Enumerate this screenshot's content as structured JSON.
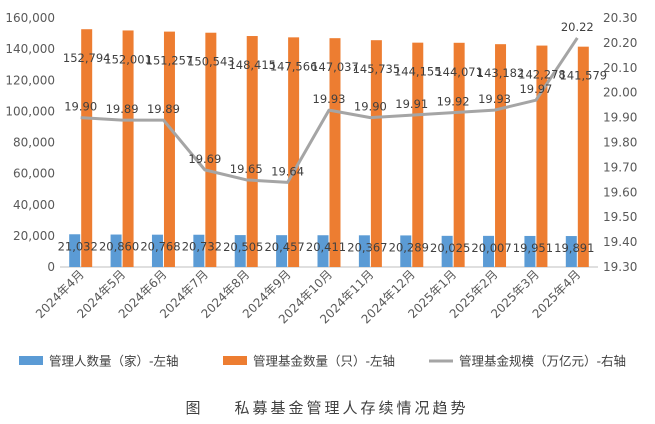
{
  "chart_data": {
    "type": "bar",
    "categories": [
      "2024年4月",
      "2024年5月",
      "2024年6月",
      "2024年7月",
      "2024年8月",
      "2024年9月",
      "2024年10月",
      "2024年11月",
      "2024年12月",
      "2025年1月",
      "2025年2月",
      "2025年3月",
      "2025年4月"
    ],
    "series": [
      {
        "name": "管理人数量（家）-左轴",
        "type": "bar",
        "axis": "left",
        "color": "#5B9BD5",
        "values": [
          21032,
          20860,
          20768,
          20732,
          20505,
          20457,
          20411,
          20367,
          20289,
          20025,
          20007,
          19951,
          19891
        ],
        "labels": [
          "21,032",
          "20,860",
          "20,768",
          "20,732",
          "20,505",
          "20,457",
          "20,411",
          "20,367",
          "20,289",
          "20,025",
          "20,007",
          "19,951",
          "19,891"
        ]
      },
      {
        "name": "管理基金数量（只）-左轴",
        "type": "bar",
        "axis": "left",
        "color": "#ED7D31",
        "values": [
          152794,
          152001,
          151257,
          150543,
          148415,
          147566,
          147037,
          145735,
          144155,
          144071,
          143182,
          142278,
          141579
        ],
        "labels": [
          "152,794",
          "152,001",
          "151,257",
          "150,543",
          "148,415",
          "147,566",
          "147,037",
          "145,735",
          "144,155",
          "144,071",
          "143,182",
          "142,278",
          "141,579"
        ]
      },
      {
        "name": "管理基金规模（万亿元）-右轴",
        "type": "line",
        "axis": "right",
        "color": "#A5A5A5",
        "values": [
          19.9,
          19.89,
          19.89,
          19.69,
          19.65,
          19.64,
          19.93,
          19.9,
          19.91,
          19.92,
          19.93,
          19.97,
          20.22
        ],
        "labels": [
          "19.90",
          "19.89",
          "19.89",
          "19.69",
          "19.65",
          "19.64",
          "19.93",
          "19.90",
          "19.91",
          "19.92",
          "19.93",
          "19.97",
          "20.22"
        ]
      }
    ],
    "left_axis": {
      "range": [
        0,
        160000
      ],
      "ticks": [
        0,
        20000,
        40000,
        60000,
        80000,
        100000,
        120000,
        140000,
        160000
      ],
      "tick_labels": [
        "0",
        "20,000",
        "40,000",
        "60,000",
        "80,000",
        "100,000",
        "120,000",
        "140,000",
        "160,000"
      ]
    },
    "right_axis": {
      "range": [
        19.3,
        20.3
      ],
      "ticks": [
        19.3,
        19.4,
        19.5,
        19.6,
        19.7,
        19.8,
        19.9,
        20.0,
        20.1,
        20.2,
        20.3
      ],
      "tick_labels": [
        "19.30",
        "19.40",
        "19.50",
        "19.60",
        "19.70",
        "19.80",
        "19.90",
        "20.00",
        "20.10",
        "20.20",
        "20.30"
      ]
    },
    "grid": false,
    "legend_position": "bottom",
    "caption": "图    私募基金管理人存续情况趋势"
  }
}
